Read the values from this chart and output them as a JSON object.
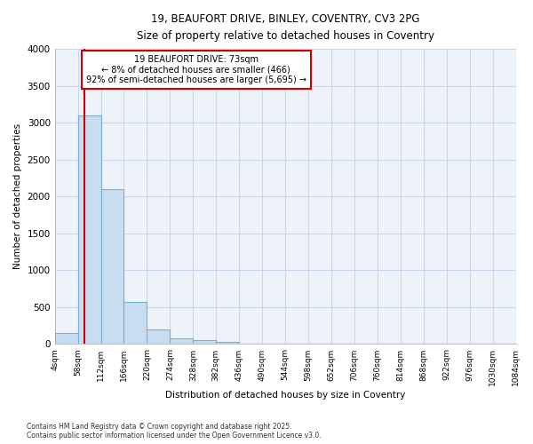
{
  "title_line1": "19, BEAUFORT DRIVE, BINLEY, COVENTRY, CV3 2PG",
  "title_line2": "Size of property relative to detached houses in Coventry",
  "xlabel": "Distribution of detached houses by size in Coventry",
  "ylabel": "Number of detached properties",
  "bin_edges": [
    4,
    58,
    112,
    166,
    220,
    274,
    328,
    382,
    436,
    490,
    544,
    598,
    652,
    706,
    760,
    814,
    868,
    922,
    976,
    1030,
    1084
  ],
  "bar_heights": [
    150,
    3100,
    2100,
    575,
    200,
    80,
    50,
    30,
    0,
    0,
    0,
    0,
    0,
    0,
    0,
    0,
    0,
    0,
    0,
    0
  ],
  "bar_color": "#c8ddf0",
  "bar_edge_color": "#7aafd4",
  "property_size": 73,
  "property_label": "19 BEAUFORT DRIVE: 73sqm",
  "annotation_line2": "← 8% of detached houses are smaller (466)",
  "annotation_line3": "92% of semi-detached houses are larger (5,695) →",
  "red_line_color": "#cc0000",
  "annotation_box_color": "#cc0000",
  "ylim": [
    0,
    4000
  ],
  "yticks": [
    0,
    500,
    1000,
    1500,
    2000,
    2500,
    3000,
    3500,
    4000
  ],
  "background_color": "#ffffff",
  "plot_bg_color": "#eef3fa",
  "footer_line1": "Contains HM Land Registry data © Crown copyright and database right 2025.",
  "footer_line2": "Contains public sector information licensed under the Open Government Licence v3.0.",
  "grid_color": "#c8d8ea"
}
